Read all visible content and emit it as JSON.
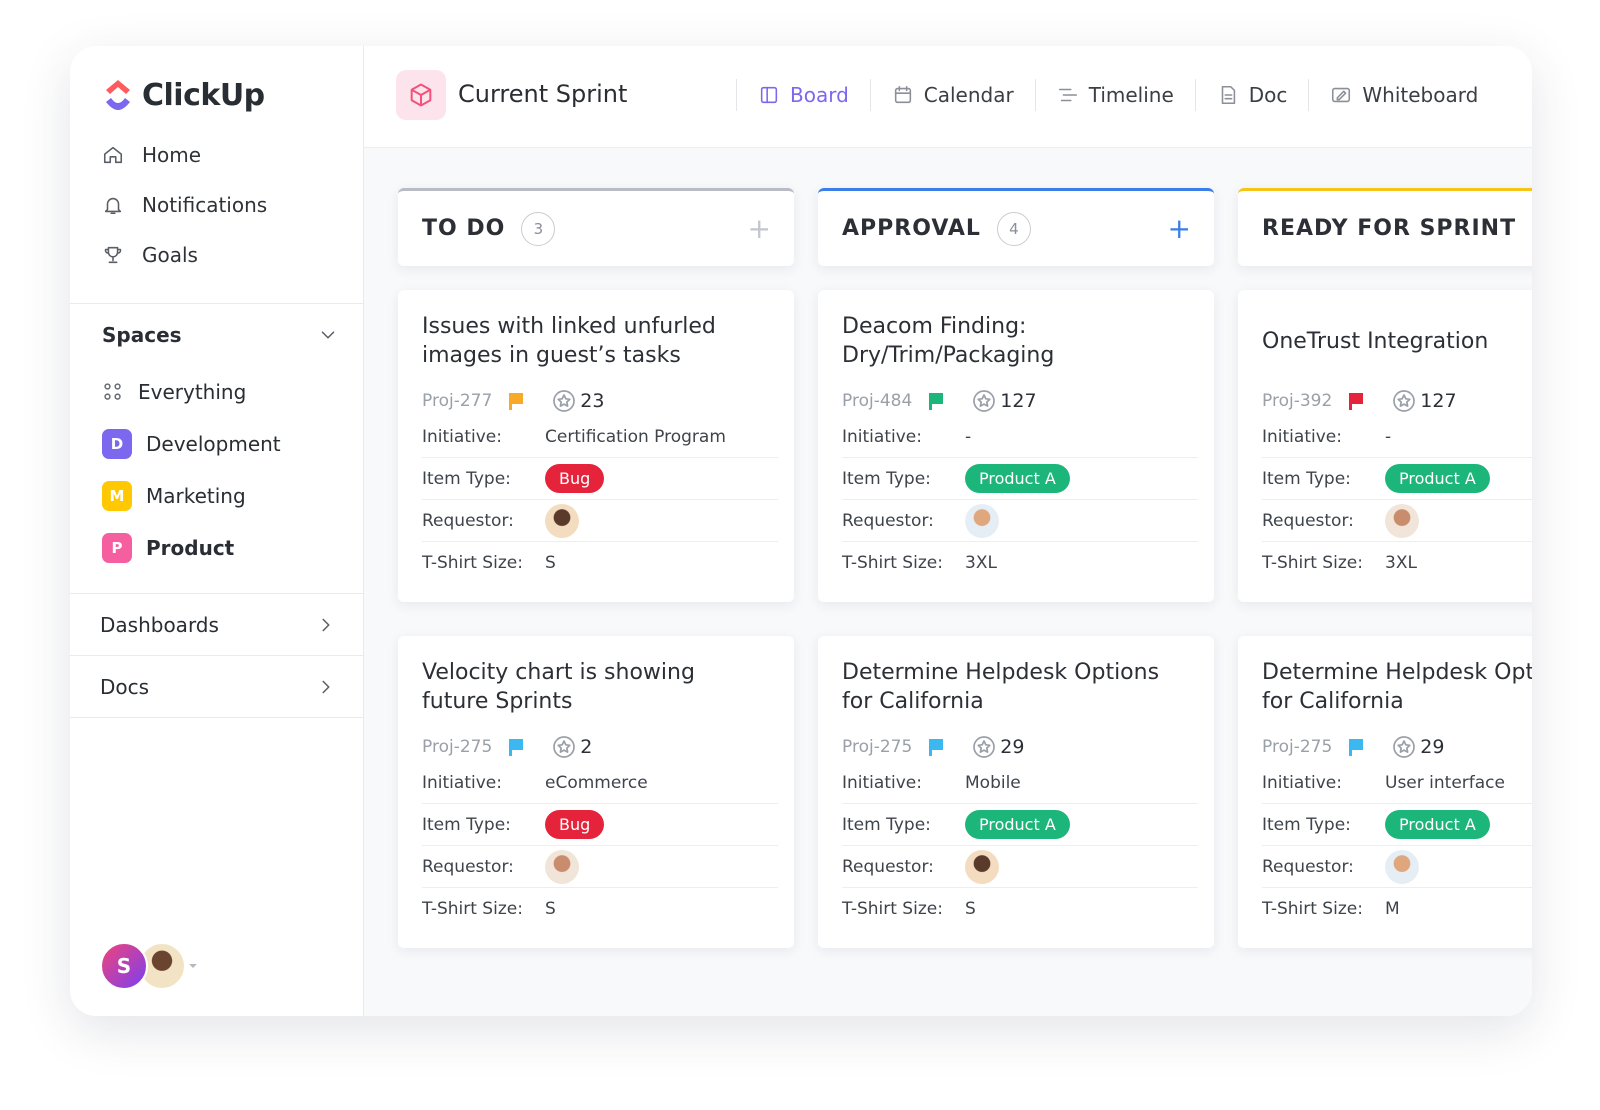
{
  "app": {
    "logo": "ClickUp"
  },
  "nav": [
    "Home",
    "Notifications",
    "Goals"
  ],
  "spaces": {
    "title": "Spaces",
    "items": [
      {
        "label": "Everything"
      },
      {
        "icon": "D",
        "label": "Development",
        "color": "#7b68ee"
      },
      {
        "icon": "M",
        "label": "Marketing",
        "color": "#ffc800"
      },
      {
        "icon": "P",
        "label": "Product",
        "color": "#f55fa0",
        "active": true
      }
    ]
  },
  "sections": [
    "Dashboards",
    "Docs"
  ],
  "user": {
    "initial": "S"
  },
  "header": {
    "title": "Current Sprint",
    "views": [
      "Board",
      "Calendar",
      "Timeline",
      "Doc",
      "Whiteboard"
    ],
    "active_view": 0
  },
  "field_labels": {
    "initiative": "Initiative:",
    "item_type": "Item Type:",
    "requestor": "Requestor:",
    "tshirt_size": "T-Shirt Size:"
  },
  "columns": [
    {
      "title": "TO DO",
      "count": 3,
      "color": "#b9bcc4",
      "cards": [
        {
          "title": "Issues with linked unfurled images in guest’s tasks",
          "id": "Proj-277",
          "flag_color": "#f7a928",
          "stars": 23,
          "initiative": "Certification Program",
          "item_type": "Bug",
          "item_type_color": "#e5243b",
          "tshirt_size": "S"
        },
        {
          "title": "Velocity chart is showing future Sprints",
          "id": "Proj-275",
          "flag_color": "#3bb8ef",
          "stars": 2,
          "initiative": "eCommerce",
          "item_type": "Bug",
          "item_type_color": "#e5243b",
          "tshirt_size": "S"
        }
      ]
    },
    {
      "title": "APPROVAL",
      "count": 4,
      "color": "#3b7ee8",
      "cards": [
        {
          "title": "Deacom Finding: Dry/Trim/Packaging",
          "id": "Proj-484",
          "flag_color": "#1db67a",
          "stars": 127,
          "initiative": "-",
          "item_type": "Product A",
          "item_type_color": "#1db67a",
          "tshirt_size": "3XL"
        },
        {
          "title": "Determine Helpdesk Options for California",
          "id": "Proj-275",
          "flag_color": "#3bb8ef",
          "stars": 29,
          "initiative": "Mobile",
          "item_type": "Product A",
          "item_type_color": "#1db67a",
          "tshirt_size": "S"
        }
      ]
    },
    {
      "title": "READY FOR SPRINT",
      "color": "#f5c518",
      "cards": [
        {
          "title": "OneTrust Integration",
          "id": "Proj-392",
          "flag_color": "#e5243b",
          "stars": 127,
          "initiative": "-",
          "item_type": "Product A",
          "item_type_color": "#1db67a",
          "tshirt_size": "3XL"
        },
        {
          "title": "Determine Helpdesk Options for California",
          "id": "Proj-275",
          "flag_color": "#3bb8ef",
          "stars": 29,
          "initiative": "User interface",
          "item_type": "Product A",
          "item_type_color": "#1db67a",
          "tshirt_size": "M"
        }
      ]
    }
  ]
}
